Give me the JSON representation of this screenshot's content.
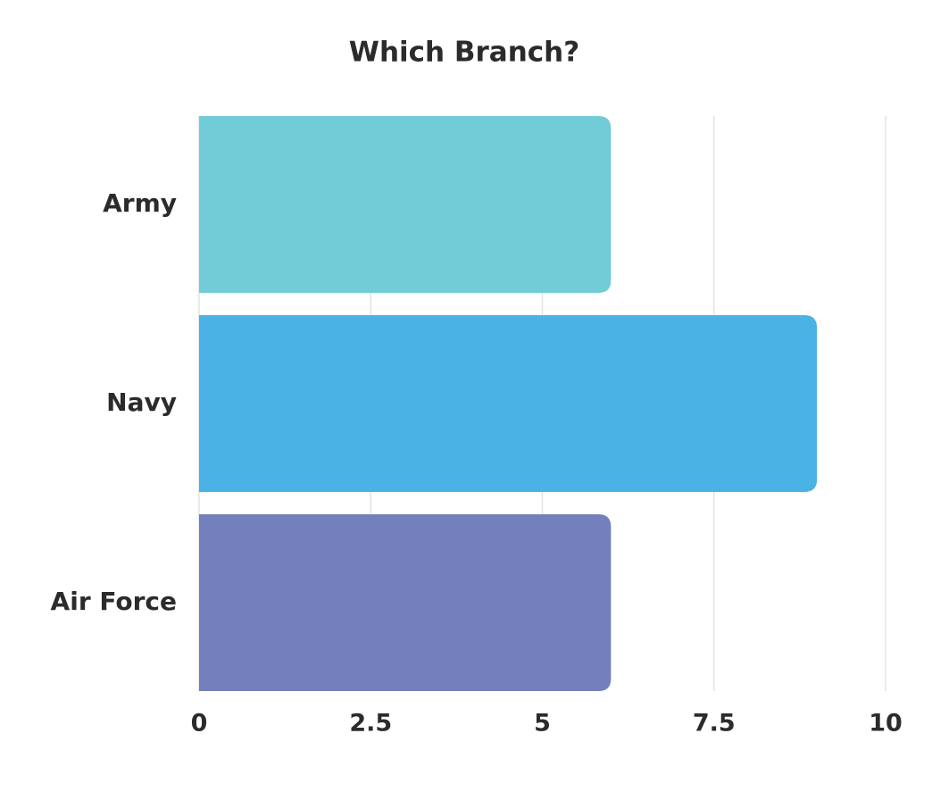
{
  "chart_data": {
    "type": "bar",
    "orientation": "horizontal",
    "title": "Which Branch?",
    "categories": [
      "Army",
      "Navy",
      "Air Force"
    ],
    "values": [
      6,
      9,
      6
    ],
    "colors": [
      "#72ccd7",
      "#4ab2e5",
      "#7380bd"
    ],
    "xlim": [
      0,
      10
    ],
    "xticks": [
      0,
      2.5,
      5,
      7.5,
      10
    ],
    "grid": true
  }
}
